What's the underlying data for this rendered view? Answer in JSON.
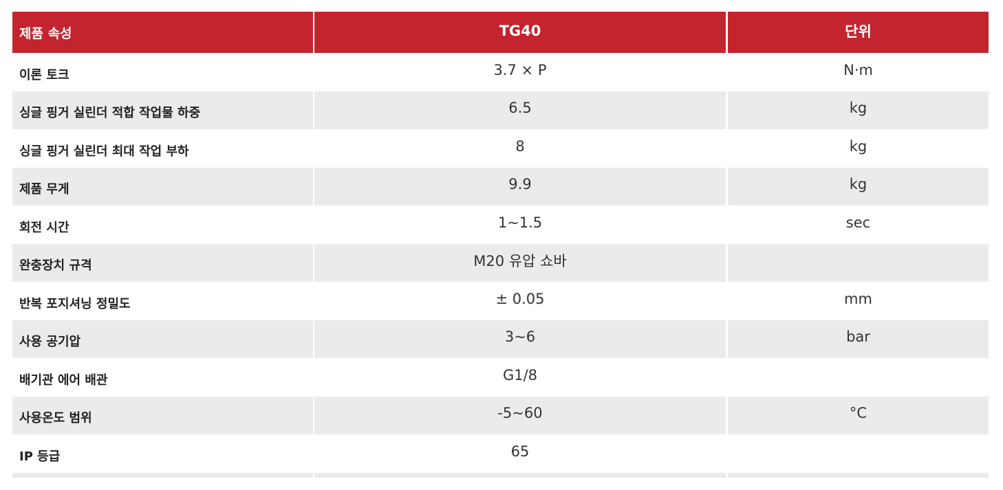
{
  "table": {
    "header": [
      "제품 속성",
      "TG40",
      "단위"
    ],
    "rows": [
      [
        "이론 토크",
        "3.7 × P",
        "N·m"
      ],
      [
        "싱글 핑거 실린더 적합 작업물 하중",
        "6.5",
        "kg"
      ],
      [
        "싱글 핑거 실린더 최대 작업 부하",
        "8",
        "kg"
      ],
      [
        "제품 무게",
        "9.9",
        "kg"
      ],
      [
        "회전 시간",
        "1~1.5",
        "sec"
      ],
      [
        "완충장치 규격",
        "M20 유압 쇼바",
        null
      ],
      [
        "반복 포지셔닝 정밀도",
        "± 0.05",
        "mm"
      ],
      [
        "사용 공기압",
        "3~6",
        "bar"
      ],
      [
        "배기관 에어 배관",
        "G1/8",
        null
      ],
      [
        "사용온도 범위",
        "-5~60",
        "°C"
      ],
      [
        "IP 등급",
        "65",
        null
      ]
    ]
  }
}
